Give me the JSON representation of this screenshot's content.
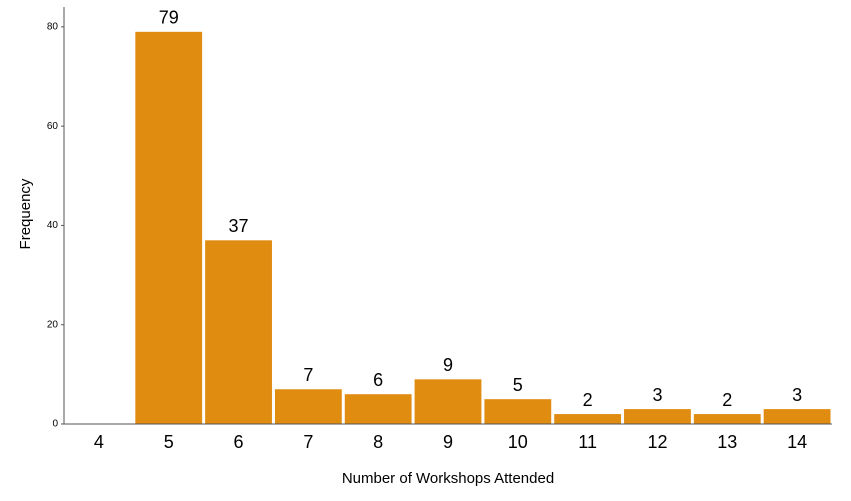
{
  "chart_data": {
    "type": "bar",
    "xlabel": "Number of Workshops Attended",
    "ylabel": "Frequency",
    "categories": [
      "4",
      "5",
      "6",
      "7",
      "8",
      "9",
      "10",
      "11",
      "12",
      "13",
      "14"
    ],
    "values": [
      null,
      79,
      37,
      7,
      6,
      9,
      5,
      2,
      3,
      2,
      3
    ],
    "color": "#e08c10",
    "ylim": [
      0,
      84
    ],
    "yticks": [
      0,
      20,
      40,
      60,
      80
    ],
    "grid": false
  }
}
